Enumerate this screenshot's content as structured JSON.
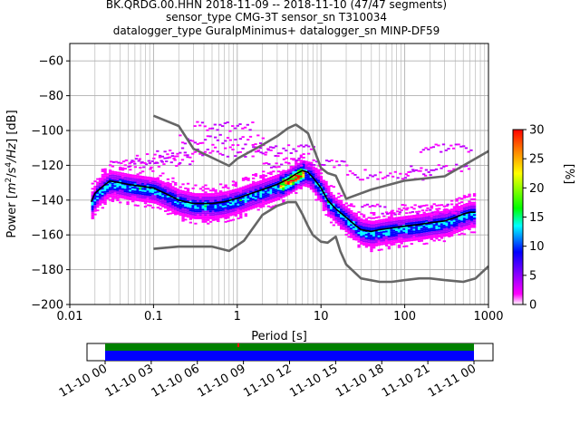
{
  "title_lines": [
    "BK.QRDG.00.HHN   2018-11-09 -- 2018-11-10  (47/47 segments)",
    "sensor_type CMG-3T sensor_sn T310034",
    "datalogger_type GuralpMinimus+ datalogger_sn MINP-DF59"
  ],
  "chart_data": [
    {
      "type": "heatmap",
      "xlabel": "Period [s]",
      "ylabel_prefix": "Power [",
      "ylabel_unit_m": "m",
      "ylabel_unit_s": "/s",
      "ylabel_unit_hz": "/Hz",
      "ylabel_unit_exp2": "2",
      "ylabel_unit_exp4": "4",
      "ylabel_suffix": "] [dB]",
      "xscale": "log",
      "xlim": [
        0.01,
        1000
      ],
      "ylim": [
        -200,
        -50
      ],
      "x_ticks": [
        0.01,
        0.1,
        1,
        10,
        100,
        1000
      ],
      "x_tick_labels": [
        "0.01",
        "0.1",
        "1",
        "10",
        "100",
        "1000"
      ],
      "y_ticks": [
        -200,
        -180,
        -160,
        -140,
        -120,
        -100,
        -80,
        -60
      ],
      "y_tick_labels": [
        "−200",
        "−180",
        "−160",
        "−140",
        "−120",
        "−100",
        "−80",
        "−60"
      ],
      "grid": true,
      "colorbar": {
        "label": "[%]",
        "range": [
          0,
          30
        ],
        "ticks": [
          0,
          5,
          10,
          15,
          20,
          25,
          30
        ],
        "tick_labels": [
          "0",
          "5",
          "10",
          "15",
          "20",
          "25",
          "30"
        ],
        "colormap": [
          "#ffffff",
          "#ff00ff",
          "#8000ff",
          "#0000ff",
          "#00ffff",
          "#00ff00",
          "#ffff00",
          "#ff8000",
          "#ff0000"
        ]
      },
      "series": [
        {
          "color": "#000000",
          "x": [
            0.018,
            0.02,
            0.025,
            0.03,
            0.04,
            0.05,
            0.07,
            0.1,
            0.15,
            0.2,
            0.3,
            0.5,
            0.7,
            1,
            1.5,
            2,
            3,
            4,
            5,
            6,
            7,
            8,
            10,
            12,
            15,
            20,
            25,
            30,
            40,
            50,
            70,
            100,
            150,
            200,
            300,
            400,
            500,
            600,
            700
          ],
          "y": [
            -141,
            -136,
            -132,
            -129,
            -130,
            -131,
            -132,
            -133,
            -137,
            -140,
            -142,
            -142,
            -141,
            -139,
            -136,
            -134,
            -131,
            -128,
            -125,
            -123,
            -124,
            -127,
            -133,
            -140,
            -145,
            -150,
            -154,
            -157,
            -158,
            -157,
            -156,
            -155,
            -154,
            -153,
            -152,
            -150,
            -148,
            -147,
            -147
          ]
        },
        {
          "color": "#666666",
          "x": [
            0.1,
            0.2,
            0.3,
            0.5,
            0.8,
            1,
            2,
            3,
            4,
            5,
            6,
            7,
            10,
            12,
            15,
            20,
            40,
            100,
            300,
            1000
          ],
          "y": [
            -91.5,
            -97.4,
            -110.5,
            -115.6,
            -120.3,
            -116.2,
            -108.3,
            -103.3,
            -98.8,
            -96.6,
            -99.2,
            -101.6,
            -121.5,
            -124.5,
            -126.0,
            -139.2,
            -133.9,
            -128.8,
            -126.3,
            -111.9
          ]
        },
        {
          "color": "#666666",
          "x": [
            0.1,
            0.2,
            0.5,
            0.8,
            1.2,
            2,
            3,
            4,
            5,
            6,
            7,
            8,
            10,
            12,
            15,
            17,
            20,
            30,
            50,
            70,
            100,
            150,
            200,
            300,
            500,
            700,
            1000
          ],
          "y": [
            -168,
            -166.7,
            -166.7,
            -169.2,
            -163.4,
            -148.5,
            -143.3,
            -141.2,
            -141.2,
            -148.1,
            -155,
            -160,
            -163.9,
            -164.5,
            -161,
            -169.3,
            -177,
            -185,
            -187,
            -187,
            -186,
            -185,
            -185,
            -186,
            -187,
            -185,
            -178
          ]
        }
      ],
      "datelabels": [
        "11-10 00",
        "11-10 03",
        "11-10 06",
        "11-10 09",
        "11-10 12",
        "11-10 15",
        "11-10 18",
        "11-10 21",
        "11-11 00"
      ],
      "coverage_colors": {
        "data": "#0000ff",
        "gap_free": "#008000",
        "gap": "#ff0000"
      }
    }
  ]
}
